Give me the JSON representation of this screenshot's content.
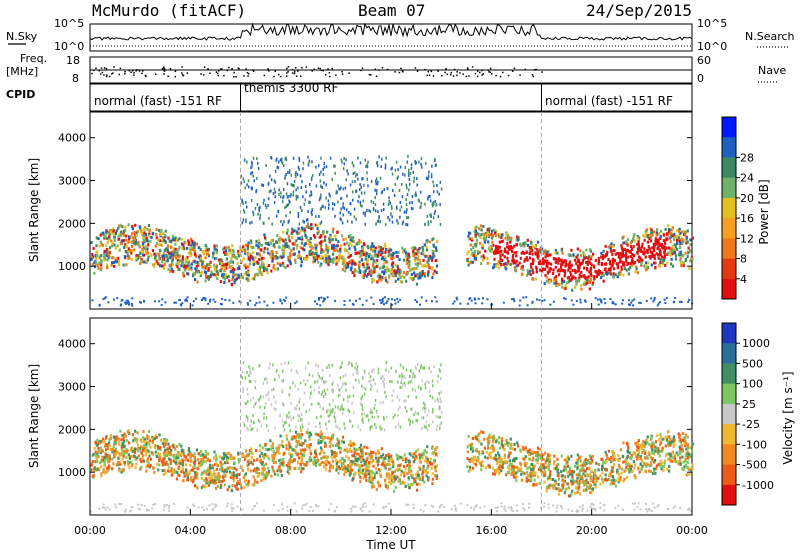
{
  "header": {
    "site": "McMurdo (fitACF)",
    "beam": "Beam 07",
    "date": "24/Sep/2015"
  },
  "summary_panel": {
    "left_labels": [
      "N.Sky",
      "Freq.",
      "[MHz]",
      "CPID"
    ],
    "right_labels": [
      "N.Search",
      "Nave"
    ],
    "noise_ticks_left": [
      "10^5",
      "10^0"
    ],
    "noise_ticks_right": [
      "10^5",
      "10^0"
    ],
    "freq_ticks": [
      "18",
      "8"
    ],
    "nave_ticks": [
      "60",
      "0"
    ],
    "cpid_segments": [
      {
        "label": "normal (fast) -151 RF",
        "start": 0,
        "end": 6
      },
      {
        "label": "themis 3300 RF",
        "start": 6,
        "end": 18
      },
      {
        "label": "normal (fast) -151 RF",
        "start": 18,
        "end": 24
      }
    ]
  },
  "chart_data": [
    {
      "type": "heatmap",
      "quantity": "Power",
      "ylabel": "Slant Range [km]",
      "xlabel": "Time UT",
      "ylim": [
        0,
        4600
      ],
      "xlim": [
        0,
        24
      ],
      "yticks": [
        1000,
        2000,
        3000,
        4000
      ],
      "xticks": [
        "00:00",
        "04:00",
        "08:00",
        "12:00",
        "16:00",
        "20:00",
        "00:00"
      ],
      "colorbar_label": "Power [dB]",
      "colorbar_ticks": [
        "4",
        "8",
        "12",
        "16",
        "20",
        "24",
        "28"
      ],
      "colorbar_colors": [
        "#0018ff",
        "#1f5fc0",
        "#3c8a64",
        "#6fb26a",
        "#e3c020",
        "#f5a020",
        "#f07818",
        "#e53a10",
        "#e01010"
      ]
    },
    {
      "type": "heatmap",
      "quantity": "Velocity",
      "ylabel": "Slant Range [km]",
      "xlabel": "Time UT",
      "ylim": [
        0,
        4600
      ],
      "xlim": [
        0,
        24
      ],
      "yticks": [
        1000,
        2000,
        3000,
        4000
      ],
      "xticks": [
        "00:00",
        "04:00",
        "08:00",
        "12:00",
        "16:00",
        "20:00",
        "00:00"
      ],
      "colorbar_label": "Velocity [m s⁻¹]",
      "colorbar_ticks": [
        "1000",
        "500",
        "100",
        "25",
        "-25",
        "-100",
        "-500",
        "-1000"
      ],
      "colorbar_colors": [
        "#2035c0",
        "#2a6f9a",
        "#3f8f62",
        "#7cc860",
        "#c8c8c8",
        "#f0b830",
        "#f08a20",
        "#ee5a18",
        "#e01010"
      ]
    }
  ],
  "colors": {
    "power_band": [
      "#e01010",
      "#f07818",
      "#e3c020",
      "#6fb26a",
      "#3c8a64",
      "#1f5fc0"
    ],
    "velocity_band": [
      "#3f8f62",
      "#f08a20",
      "#f0b830",
      "#7cc860",
      "#ee5a18"
    ]
  }
}
